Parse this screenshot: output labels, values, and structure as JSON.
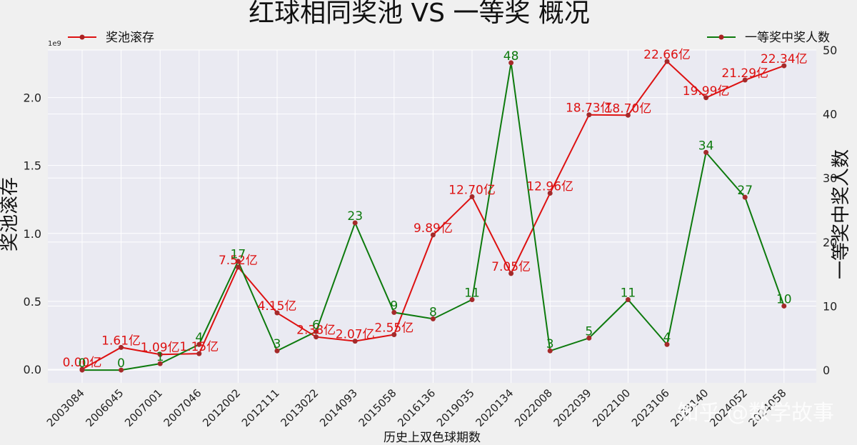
{
  "chart_data": {
    "type": "line",
    "title": "红球相同奖池 VS 一等奖 概况",
    "xlabel": "历史上双色球期数",
    "ylabel_left": "奖池滚存",
    "ylabel_right": "一等奖中奖人数",
    "left_axis_exponent": "1e9",
    "categories": [
      "2003084",
      "2006045",
      "2007001",
      "2007046",
      "2012002",
      "2012111",
      "2013022",
      "2014093",
      "2015058",
      "2016136",
      "2019035",
      "2020134",
      "2022008",
      "2022039",
      "2022100",
      "2023106",
      "2023140",
      "2024052",
      "2024058"
    ],
    "ylim_left": [
      -0.1,
      2.35
    ],
    "ylim_right": [
      -2,
      50
    ],
    "yticks_left": [
      "0.0",
      "0.5",
      "1.0",
      "1.5",
      "2.0"
    ],
    "yticks_left_values": [
      0,
      0.5,
      1.0,
      1.5,
      2.0
    ],
    "yticks_right": [
      "0",
      "10",
      "20",
      "30",
      "40",
      "50"
    ],
    "yticks_right_values": [
      0,
      10,
      20,
      30,
      40,
      50
    ],
    "grid": true,
    "series": [
      {
        "name": "奖池滚存",
        "axis": "left",
        "color": "#dd1111",
        "values": [
          0.0,
          0.161,
          0.109,
          0.115,
          0.752,
          0.415,
          0.238,
          0.207,
          0.255,
          0.989,
          1.27,
          0.705,
          1.296,
          1.873,
          1.87,
          2.266,
          1.999,
          2.129,
          2.234
        ],
        "data_labels": [
          "0.00亿",
          "1.61亿",
          "1.09亿",
          "1.15亿",
          "7.52亿",
          "4.15亿",
          "2.38亿",
          "2.07亿",
          "2.55亿",
          "9.89亿",
          "12.70亿",
          "7.05亿",
          "12.96亿",
          "18.73亿",
          "18.70亿",
          "22.66亿",
          "19.99亿",
          "21.29亿",
          "22.34亿"
        ]
      },
      {
        "name": "一等奖中奖人数",
        "axis": "right",
        "color": "#0d7a0d",
        "values": [
          0,
          0,
          1,
          4,
          17,
          3,
          6,
          23,
          9,
          8,
          11,
          48,
          3,
          5,
          11,
          4,
          34,
          27,
          10
        ],
        "data_labels": [
          "0",
          "0",
          "1",
          "4",
          "17",
          "3",
          "6",
          "23",
          "9",
          "8",
          "11",
          "48",
          "3",
          "5",
          "11",
          "4",
          "34",
          "27",
          "10"
        ]
      }
    ],
    "legend": [
      {
        "label": "奖池滚存",
        "position": "top-left"
      },
      {
        "label": "一等奖中奖人数",
        "position": "top-right"
      }
    ],
    "watermark": "知乎 @数学故事"
  }
}
